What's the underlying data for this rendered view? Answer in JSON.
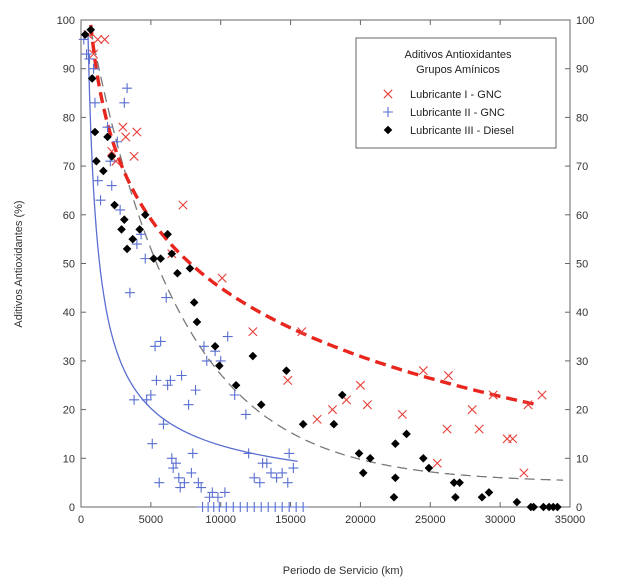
{
  "chart_data": {
    "type": "scatter",
    "xlabel": "Periodo de Servicio (km)",
    "ylabel": "Aditivos Antioxidantes (%)",
    "xlim": [
      0,
      35000
    ],
    "ylim": [
      0,
      100
    ],
    "x_ticks": [
      0,
      5000,
      10000,
      15000,
      20000,
      25000,
      30000,
      35000
    ],
    "y_ticks": [
      0,
      10,
      20,
      30,
      40,
      50,
      60,
      70,
      80,
      90,
      100
    ],
    "grid": false,
    "legend": {
      "title_line1": "Aditivos Antioxidantes",
      "title_line2": "Grupos Amínicos",
      "placement": "top-right"
    },
    "series": [
      {
        "name": "Lubricante I - GNC",
        "marker": "x",
        "color": "#e8413c",
        "points": [
          [
            500,
            97
          ],
          [
            900,
            93
          ],
          [
            1200,
            96
          ],
          [
            1700,
            96
          ],
          [
            2200,
            73
          ],
          [
            2500,
            71
          ],
          [
            3000,
            78
          ],
          [
            3200,
            76
          ],
          [
            3800,
            72
          ],
          [
            4000,
            77
          ],
          [
            6500,
            52
          ],
          [
            7300,
            62
          ],
          [
            10100,
            47
          ],
          [
            12300,
            36
          ],
          [
            14800,
            26
          ],
          [
            15800,
            36
          ],
          [
            16900,
            18
          ],
          [
            18000,
            20
          ],
          [
            19000,
            22
          ],
          [
            20000,
            25
          ],
          [
            20500,
            21
          ],
          [
            23000,
            19
          ],
          [
            24500,
            28
          ],
          [
            25500,
            9
          ],
          [
            26200,
            16
          ],
          [
            26300,
            27
          ],
          [
            28000,
            20
          ],
          [
            28500,
            16
          ],
          [
            29500,
            23
          ],
          [
            30500,
            14
          ],
          [
            30900,
            14
          ],
          [
            31700,
            7
          ],
          [
            32000,
            21
          ],
          [
            33000,
            23
          ]
        ]
      },
      {
        "name": "Lubricante II - GNC",
        "marker": "+",
        "color": "#5a6fd0",
        "points": [
          [
            200,
            96
          ],
          [
            400,
            93
          ],
          [
            600,
            92
          ],
          [
            900,
            90
          ],
          [
            1000,
            83
          ],
          [
            1200,
            67
          ],
          [
            1400,
            63
          ],
          [
            1900,
            78
          ],
          [
            2100,
            71
          ],
          [
            2200,
            66
          ],
          [
            2600,
            75
          ],
          [
            2800,
            61
          ],
          [
            3100,
            83
          ],
          [
            3300,
            86
          ],
          [
            3500,
            44
          ],
          [
            3800,
            22
          ],
          [
            4000,
            54
          ],
          [
            4300,
            56
          ],
          [
            4600,
            51
          ],
          [
            4700,
            22
          ],
          [
            5000,
            23
          ],
          [
            5100,
            13
          ],
          [
            5300,
            33
          ],
          [
            5400,
            26
          ],
          [
            5600,
            5
          ],
          [
            5700,
            34
          ],
          [
            5900,
            17
          ],
          [
            6100,
            43
          ],
          [
            6200,
            25
          ],
          [
            6400,
            26
          ],
          [
            6500,
            10
          ],
          [
            6600,
            8
          ],
          [
            6800,
            9
          ],
          [
            7000,
            6
          ],
          [
            7100,
            4
          ],
          [
            7200,
            27
          ],
          [
            7400,
            5
          ],
          [
            7700,
            21
          ],
          [
            7900,
            7
          ],
          [
            8000,
            11
          ],
          [
            8200,
            24
          ],
          [
            8400,
            5
          ],
          [
            8600,
            4
          ],
          [
            8800,
            33
          ],
          [
            9000,
            30
          ],
          [
            9200,
            2
          ],
          [
            9400,
            3
          ],
          [
            9600,
            32
          ],
          [
            9800,
            2
          ],
          [
            10000,
            30
          ],
          [
            10300,
            3
          ],
          [
            10500,
            35
          ],
          [
            11000,
            23
          ],
          [
            11800,
            19
          ],
          [
            12000,
            11
          ],
          [
            12400,
            6
          ],
          [
            12800,
            5
          ],
          [
            13000,
            9
          ],
          [
            13300,
            9
          ],
          [
            13600,
            7
          ],
          [
            14000,
            6
          ],
          [
            14400,
            7
          ],
          [
            14800,
            5
          ],
          [
            14900,
            11
          ],
          [
            15200,
            8
          ],
          [
            8700,
            0
          ],
          [
            9100,
            0
          ],
          [
            9500,
            0
          ],
          [
            9900,
            0
          ],
          [
            10400,
            0
          ],
          [
            10900,
            0
          ],
          [
            11400,
            0
          ],
          [
            11900,
            0
          ],
          [
            12400,
            0
          ],
          [
            12900,
            0
          ],
          [
            13400,
            0
          ],
          [
            13900,
            0
          ],
          [
            14400,
            0
          ],
          [
            14900,
            0
          ],
          [
            15400,
            0
          ],
          [
            15900,
            0
          ]
        ]
      },
      {
        "name": "Lubricante III - Diesel",
        "marker": "diamond",
        "color": "#000000",
        "points": [
          [
            300,
            97
          ],
          [
            700,
            98
          ],
          [
            800,
            88
          ],
          [
            1000,
            77
          ],
          [
            1100,
            71
          ],
          [
            1600,
            69
          ],
          [
            1900,
            76
          ],
          [
            2200,
            72
          ],
          [
            2400,
            62
          ],
          [
            2900,
            57
          ],
          [
            3100,
            59
          ],
          [
            3300,
            53
          ],
          [
            3700,
            55
          ],
          [
            4200,
            57
          ],
          [
            4600,
            60
          ],
          [
            5200,
            51
          ],
          [
            5700,
            51
          ],
          [
            6200,
            56
          ],
          [
            6500,
            52
          ],
          [
            6900,
            48
          ],
          [
            7800,
            49
          ],
          [
            8100,
            42
          ],
          [
            8300,
            38
          ],
          [
            9600,
            33
          ],
          [
            9900,
            29
          ],
          [
            11100,
            25
          ],
          [
            12300,
            31
          ],
          [
            12900,
            21
          ],
          [
            14700,
            28
          ],
          [
            15900,
            17
          ],
          [
            18100,
            17
          ],
          [
            18700,
            23
          ],
          [
            19900,
            11
          ],
          [
            20200,
            7
          ],
          [
            20700,
            10
          ],
          [
            22400,
            2
          ],
          [
            22500,
            6
          ],
          [
            22500,
            13
          ],
          [
            23300,
            15
          ],
          [
            24500,
            10
          ],
          [
            24900,
            8
          ],
          [
            26700,
            5
          ],
          [
            26800,
            2
          ],
          [
            27100,
            5
          ],
          [
            28700,
            2
          ],
          [
            29200,
            3
          ],
          [
            31200,
            1
          ],
          [
            32200,
            0
          ],
          [
            32400,
            0
          ],
          [
            33100,
            0
          ],
          [
            33500,
            0
          ],
          [
            33800,
            0
          ],
          [
            34100,
            0
          ]
        ]
      }
    ]
  }
}
